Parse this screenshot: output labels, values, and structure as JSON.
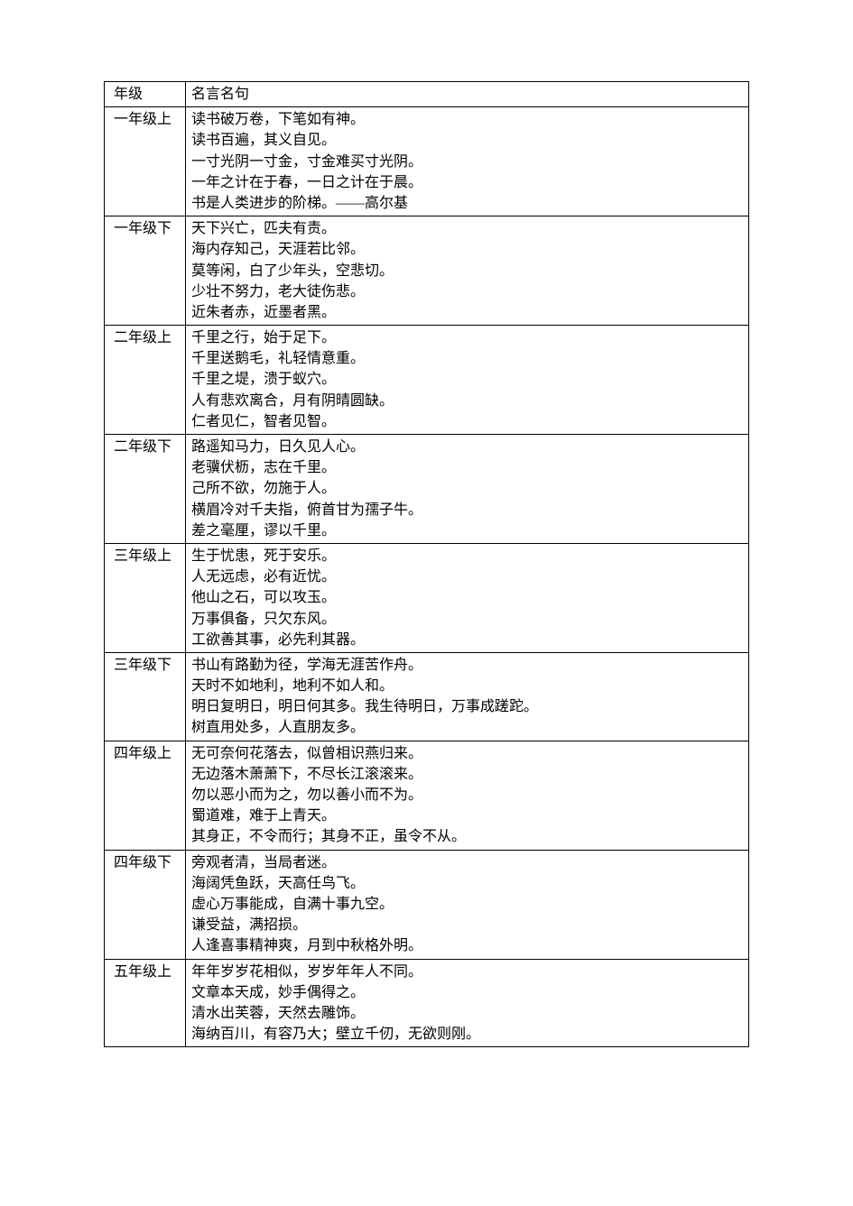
{
  "table": {
    "headers": {
      "grade": "年级",
      "quotes": "名言名句"
    },
    "rows": [
      {
        "grade": "一年级上",
        "quotes": [
          "读书破万卷，下笔如有神。",
          "读书百遍，其义自见。",
          "一寸光阴一寸金，寸金难买寸光阴。",
          "一年之计在于春，一日之计在于晨。",
          "书是人类进步的阶梯。——高尔基"
        ]
      },
      {
        "grade": "一年级下",
        "quotes": [
          "天下兴亡，匹夫有责。",
          "海内存知己，天涯若比邻。",
          "莫等闲，白了少年头，空悲切。",
          "少壮不努力，老大徒伤悲。",
          "近朱者赤，近墨者黑。"
        ]
      },
      {
        "grade": "二年级上",
        "quotes": [
          "千里之行，始于足下。",
          "千里送鹅毛，礼轻情意重。",
          "千里之堤，溃于蚁穴。",
          "人有悲欢离合，月有阴晴圆缺。",
          "仁者见仁，智者见智。"
        ]
      },
      {
        "grade": "二年级下",
        "quotes": [
          "路遥知马力，日久见人心。",
          "老骥伏枥，志在千里。",
          "己所不欲，勿施于人。",
          "横眉冷对千夫指，俯首甘为孺子牛。",
          "差之毫厘，谬以千里。"
        ]
      },
      {
        "grade": "三年级上",
        "quotes": [
          "生于忧患，死于安乐。",
          "人无远虑，必有近忧。",
          "他山之石，可以攻玉。",
          "万事俱备，只欠东风。",
          "工欲善其事，必先利其器。"
        ]
      },
      {
        "grade": "三年级下",
        "quotes": [
          "书山有路勤为径，学海无涯苦作舟。",
          "天时不如地利，地利不如人和。",
          "明日复明日，明日何其多。我生待明日，万事成蹉跎。",
          "树直用处多，人直朋友多。"
        ]
      },
      {
        "grade": "四年级上",
        "quotes": [
          "无可奈何花落去，似曾相识燕归来。",
          "无边落木萧萧下，不尽长江滚滚来。",
          "勿以恶小而为之，勿以善小而不为。",
          "蜀道难，难于上青天。",
          "其身正，不令而行；其身不正，虽令不从。"
        ]
      },
      {
        "grade": "四年级下",
        "quotes": [
          "旁观者清，当局者迷。",
          "海阔凭鱼跃，天高任鸟飞。",
          "虚心万事能成，自满十事九空。",
          "谦受益，满招损。",
          "人逢喜事精神爽，月到中秋格外明。"
        ]
      },
      {
        "grade": "五年级上",
        "quotes": [
          "年年岁岁花相似，岁岁年年人不同。",
          "文章本天成，妙手偶得之。",
          "清水出芙蓉，天然去雕饰。",
          "海纳百川，有容乃大；壁立千仞，无欲则刚。"
        ]
      }
    ],
    "styling": {
      "border_color": "#000000",
      "background_color": "#ffffff",
      "font_family": "SimSun",
      "font_size": 16,
      "line_height": 1.45,
      "grade_col_width": 90,
      "cell_padding": "2px 6px"
    }
  }
}
